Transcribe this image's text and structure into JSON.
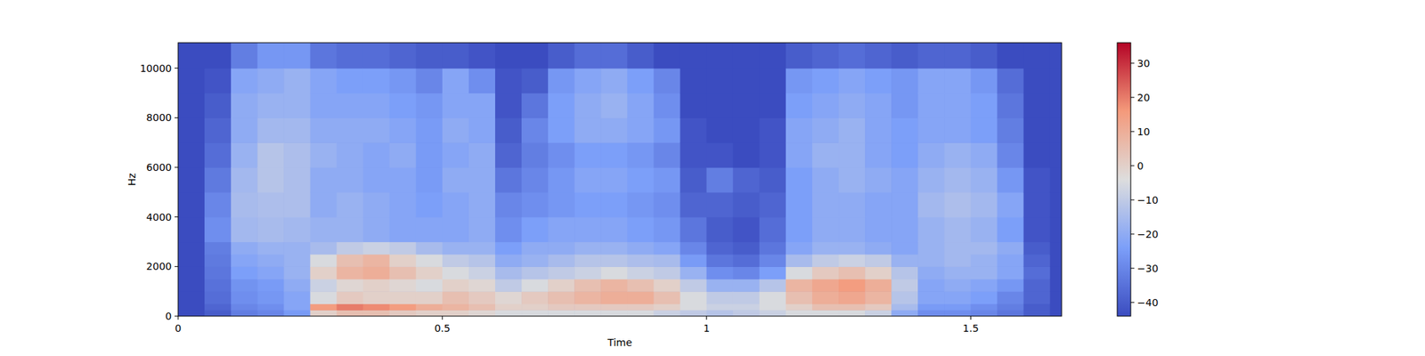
{
  "chart_data": {
    "type": "heatmap",
    "x_label": "Time",
    "y_label": "Hz",
    "xlim": [
      0,
      1.672
    ],
    "ylim": [
      0,
      11025
    ],
    "xticks": [
      0,
      0.5,
      1,
      1.5
    ],
    "yticks": [
      0,
      2000,
      4000,
      6000,
      8000,
      10000
    ],
    "x_edges": [
      0,
      0.05,
      0.1,
      0.15,
      0.2,
      0.25,
      0.3,
      0.35,
      0.4,
      0.45,
      0.5,
      0.55,
      0.6,
      0.65,
      0.7,
      0.75,
      0.8,
      0.85,
      0.9,
      0.95,
      1.0,
      1.05,
      1.1,
      1.15,
      1.2,
      1.25,
      1.3,
      1.35,
      1.4,
      1.45,
      1.5,
      1.55,
      1.6,
      1.65,
      1.7
    ],
    "y_edges": [
      0,
      250,
      500,
      1000,
      1500,
      2000,
      2500,
      3000,
      4000,
      5000,
      6000,
      7000,
      8000,
      9000,
      10000,
      11025
    ],
    "cells": [
      [
        -44,
        -44,
        -44,
        -44,
        -44,
        -44,
        -44,
        -44,
        -44,
        -44,
        -44,
        -44,
        -44,
        -44,
        -44
      ],
      [
        -40,
        -38,
        -36,
        -35,
        -34,
        -33,
        -32,
        -28,
        -30,
        -33,
        -36,
        -38,
        -40,
        -42,
        -44
      ],
      [
        -32,
        -30,
        -28,
        -27,
        -24,
        -22,
        -20,
        -16,
        -15,
        -16,
        -18,
        -20,
        -20,
        -22,
        -32
      ],
      [
        -30,
        -28,
        -26,
        -25,
        -22,
        -20,
        -18,
        -15,
        -14,
        -12,
        -12,
        -16,
        -18,
        -20,
        -26
      ],
      [
        -25,
        -22,
        -22,
        -20,
        -18,
        -18,
        -18,
        -16,
        -14,
        -14,
        -14,
        -16,
        -18,
        -18,
        -26
      ],
      [
        0,
        15,
        -5,
        -8,
        0,
        -5,
        -15,
        -18,
        -20,
        -20,
        -18,
        -20,
        -22,
        -22,
        -34
      ],
      [
        5,
        20,
        2,
        -2,
        8,
        5,
        -10,
        -18,
        -18,
        -20,
        -20,
        -20,
        -22,
        -24,
        -36
      ],
      [
        5,
        18,
        0,
        0,
        10,
        8,
        -8,
        -20,
        -20,
        -22,
        -22,
        -20,
        -22,
        -24,
        -36
      ],
      [
        2,
        15,
        0,
        -2,
        5,
        0,
        -10,
        -22,
        -22,
        -22,
        -20,
        -22,
        -24,
        -26,
        -38
      ],
      [
        0,
        10,
        0,
        -5,
        0,
        -5,
        -15,
        -22,
        -24,
        -25,
        -25,
        -25,
        -26,
        -30,
        -40
      ],
      [
        0,
        8,
        5,
        0,
        -5,
        -10,
        -18,
        -22,
        -22,
        -20,
        -22,
        -20,
        -22,
        -22,
        -40
      ],
      [
        -2,
        5,
        2,
        -2,
        -8,
        -12,
        -18,
        -20,
        -20,
        -20,
        -20,
        -22,
        -22,
        -28,
        -42
      ],
      [
        -5,
        0,
        -2,
        -10,
        -15,
        -20,
        -24,
        -28,
        -30,
        -34,
        -38,
        -40,
        -42,
        -42,
        -44
      ],
      [
        -5,
        0,
        2,
        -5,
        -12,
        -18,
        -20,
        -24,
        -28,
        -30,
        -32,
        -30,
        -34,
        -40,
        -44
      ],
      [
        -5,
        2,
        5,
        0,
        -10,
        -15,
        -20,
        -22,
        -26,
        -26,
        -28,
        -24,
        -24,
        -26,
        -40
      ],
      [
        -5,
        2,
        8,
        5,
        -8,
        -12,
        -18,
        -22,
        -24,
        -22,
        -24,
        -20,
        -20,
        -22,
        -36
      ],
      [
        -5,
        2,
        10,
        8,
        -5,
        -12,
        -18,
        -22,
        -24,
        -22,
        -24,
        -20,
        -18,
        -20,
        -36
      ],
      [
        -5,
        2,
        10,
        5,
        -8,
        -14,
        -20,
        -24,
        -26,
        -24,
        -26,
        -22,
        -22,
        -24,
        -40
      ],
      [
        -8,
        0,
        5,
        0,
        -10,
        -15,
        -22,
        -26,
        -28,
        -26,
        -30,
        -26,
        -28,
        -30,
        -44
      ],
      [
        -10,
        -5,
        -5,
        -10,
        -18,
        -25,
        -30,
        -34,
        -38,
        -40,
        -42,
        -42,
        -44,
        -44,
        -44
      ],
      [
        -12,
        -8,
        -10,
        -18,
        -28,
        -34,
        -38,
        -40,
        -38,
        -32,
        -42,
        -44,
        -44,
        -44,
        -44
      ],
      [
        -10,
        -8,
        -10,
        -18,
        -30,
        -36,
        -40,
        -42,
        -40,
        -38,
        -44,
        -44,
        -44,
        -44,
        -44
      ],
      [
        -8,
        -5,
        -5,
        -12,
        -24,
        -30,
        -34,
        -36,
        -38,
        -40,
        -42,
        -42,
        -44,
        -44,
        -44
      ],
      [
        -5,
        0,
        5,
        8,
        -5,
        -15,
        -22,
        -24,
        -24,
        -24,
        -22,
        -22,
        -24,
        -26,
        -40
      ],
      [
        -5,
        5,
        10,
        12,
        2,
        -10,
        -18,
        -20,
        -20,
        -20,
        -18,
        -20,
        -22,
        -24,
        -38
      ],
      [
        -5,
        5,
        12,
        15,
        5,
        -8,
        -18,
        -20,
        -20,
        -18,
        -18,
        -18,
        -20,
        -22,
        -36
      ],
      [
        -8,
        2,
        8,
        10,
        0,
        -10,
        -20,
        -22,
        -22,
        -20,
        -22,
        -22,
        -22,
        -24,
        -38
      ],
      [
        -20,
        -15,
        -12,
        -10,
        -12,
        -18,
        -22,
        -22,
        -22,
        -22,
        -24,
        -24,
        -26,
        -26,
        -40
      ],
      [
        -28,
        -25,
        -22,
        -22,
        -20,
        -18,
        -18,
        -18,
        -16,
        -18,
        -20,
        -22,
        -22,
        -22,
        -38
      ],
      [
        -28,
        -25,
        -22,
        -20,
        -18,
        -16,
        -16,
        -16,
        -14,
        -16,
        -18,
        -22,
        -22,
        -22,
        -38
      ],
      [
        -30,
        -28,
        -24,
        -22,
        -18,
        -18,
        -16,
        -18,
        -16,
        -18,
        -20,
        -24,
        -24,
        -26,
        -40
      ],
      [
        -34,
        -32,
        -30,
        -26,
        -22,
        -22,
        -20,
        -24,
        -22,
        -26,
        -30,
        -32,
        -34,
        -36,
        -44
      ],
      [
        -40,
        -40,
        -38,
        -38,
        -36,
        -38,
        -40,
        -42,
        -42,
        -42,
        -44,
        -44,
        -44,
        -44,
        -44
      ],
      [
        -44,
        -44,
        -44,
        -44,
        -44,
        -44,
        -44,
        -44,
        -44,
        -44,
        -44,
        -44,
        -44,
        -44,
        -44
      ]
    ],
    "zlim": [
      -44,
      36
    ],
    "zticks": [
      30,
      20,
      10,
      0,
      {
        "value": -10,
        "label": "−10"
      },
      {
        "value": -20,
        "label": "−20"
      },
      {
        "value": -30,
        "label": "−30"
      },
      {
        "value": -40,
        "label": "−40"
      }
    ]
  }
}
